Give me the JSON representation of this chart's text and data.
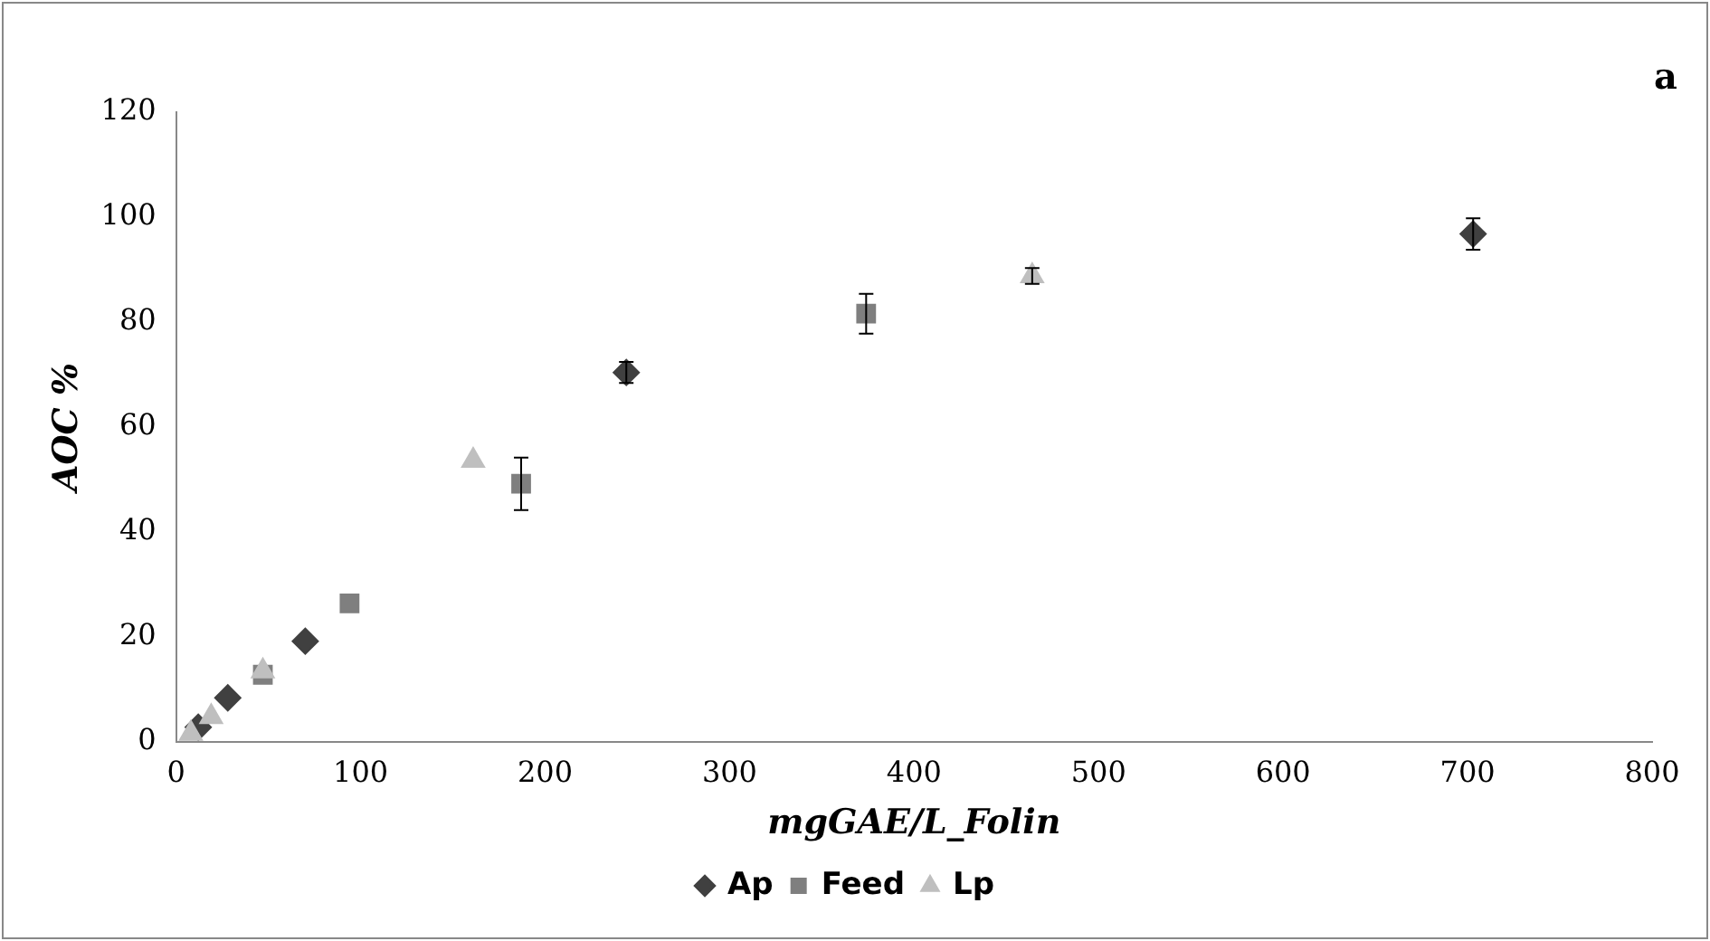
{
  "chart_data": {
    "type": "scatter",
    "xlabel": "mgGAE/L_Folin",
    "ylabel": "AOC %",
    "annotations": [
      "a"
    ],
    "xlim": [
      0,
      800
    ],
    "xticks": [
      0,
      100,
      200,
      300,
      400,
      500,
      600,
      700,
      800
    ],
    "ylim": [
      0,
      120
    ],
    "yticks": [
      0,
      20,
      40,
      60,
      80,
      100,
      120
    ],
    "grid": false,
    "legend": "bottom",
    "series": [
      {
        "name": "Ap",
        "color": "#404040",
        "marker": "diamond",
        "x": [
          12,
          28,
          70,
          244,
          703
        ],
        "values": [
          2.8,
          8.4,
          19.2,
          70.4,
          96.8
        ],
        "errors": [
          null,
          null,
          null,
          2,
          3
        ]
      },
      {
        "name": "Feed",
        "color": "#7f7f7f",
        "marker": "square",
        "x": [
          47,
          94,
          187,
          374
        ],
        "values": [
          12.8,
          26.4,
          49.2,
          81.6
        ],
        "errors": [
          null,
          null,
          5,
          3.8
        ]
      },
      {
        "name": "Lp",
        "color": "#bfbfbf",
        "marker": "triangle",
        "x": [
          8,
          19,
          47,
          161,
          464
        ],
        "values": [
          1.6,
          4.8,
          13.5,
          53.6,
          88.8
        ],
        "errors": [
          null,
          null,
          null,
          null,
          1.5
        ]
      }
    ]
  }
}
